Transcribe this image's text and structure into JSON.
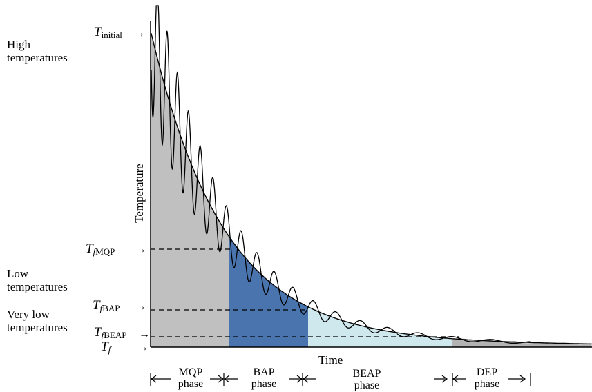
{
  "categories": {
    "high": [
      "High",
      "temperatures"
    ],
    "low": [
      "Low",
      "temperatures"
    ],
    "very_low": [
      "Very low",
      "temperatures"
    ]
  },
  "axes": {
    "y_label": "Temperature",
    "x_label": "Time"
  },
  "markers": [
    {
      "id": "t-initial",
      "symbol": "T",
      "sub": "initial"
    },
    {
      "id": "tf-mqp",
      "symbol": "T",
      "sub_italic": "f",
      "sub": "MQP"
    },
    {
      "id": "tf-bap",
      "symbol": "T",
      "sub_italic": "f",
      "sub": "BAP"
    },
    {
      "id": "tf-beap",
      "symbol": "T",
      "sub_italic": "f",
      "sub": "BEAP"
    },
    {
      "id": "tf",
      "symbol": "T",
      "sub_italic": "f",
      "sub": ""
    }
  ],
  "phases": [
    {
      "id": "mqp",
      "name": "MQP",
      "word": "phase",
      "color": "#c0c0c0"
    },
    {
      "id": "bap",
      "name": "BAP",
      "word": "phase",
      "color": "#4a74ad"
    },
    {
      "id": "beap",
      "name": "BEAP",
      "word": "phase",
      "color": "#cfe8ee"
    },
    {
      "id": "dep",
      "name": "DEP",
      "word": "phase",
      "color": "#b3b3b3"
    }
  ],
  "arrow_glyph": "→"
}
